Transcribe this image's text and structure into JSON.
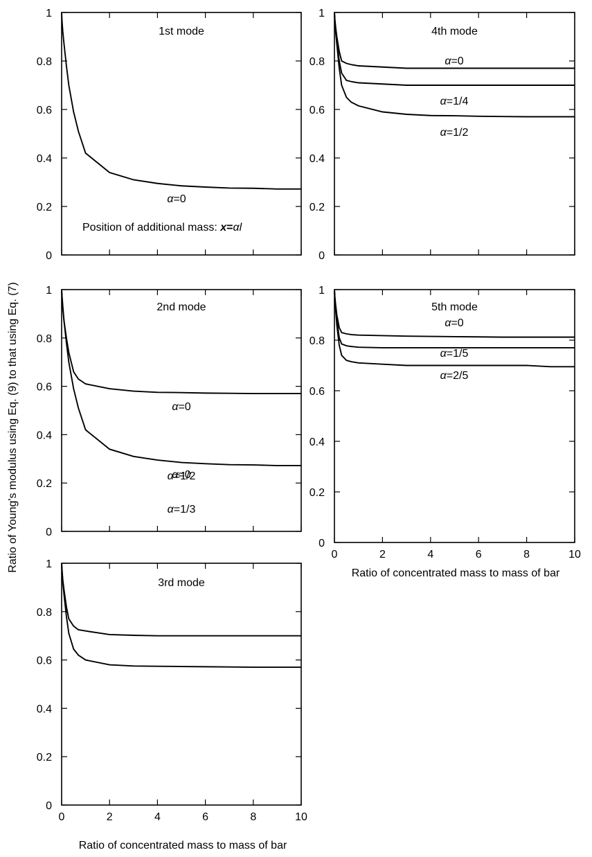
{
  "figure": {
    "ylabel": "Ratio of Young's modulus using Eq. (9) to that using Eq. (7)",
    "xlabel_left": "Ratio of concentrated mass to mass of bar",
    "xlabel_right": "Ratio of concentrated mass to mass of bar",
    "note_parts": {
      "prefix": "Position of additional mass: ",
      "var": "x",
      "eq": "=",
      "alpha": "α",
      "l": "l"
    }
  },
  "chart_data": [
    {
      "type": "line",
      "id": "mode1",
      "title": "1st mode",
      "xlim": [
        0,
        10
      ],
      "ylim": [
        0,
        1
      ],
      "x_ticks": [
        "0",
        "2",
        "4",
        "6",
        "8",
        "10"
      ],
      "y_ticks": [
        "0",
        "0.2",
        "0.4",
        "0.6",
        "0.8",
        "1"
      ],
      "show_x_ticklabels": false,
      "series": [
        {
          "label_parts": {
            "sym": "α",
            "val": "=0"
          },
          "x": [
            0,
            0.02,
            0.05,
            0.1,
            0.2,
            0.3,
            0.5,
            0.7,
            1,
            2,
            3,
            4,
            5,
            6,
            7,
            8,
            9,
            10
          ],
          "y": [
            1.0,
            0.96,
            0.92,
            0.87,
            0.78,
            0.7,
            0.59,
            0.51,
            0.42,
            0.34,
            0.31,
            0.295,
            0.285,
            0.28,
            0.276,
            0.275,
            0.272,
            0.272
          ]
        }
      ]
    },
    {
      "type": "line",
      "id": "mode2",
      "title": "2nd mode",
      "xlim": [
        0,
        10
      ],
      "ylim": [
        0,
        1
      ],
      "x_ticks": [
        "0",
        "2",
        "4",
        "6",
        "8",
        "10"
      ],
      "y_ticks": [
        "0",
        "0.2",
        "0.4",
        "0.6",
        "0.8",
        "1"
      ],
      "show_x_ticklabels": false,
      "series": [
        {
          "label_parts": {
            "sym": "α",
            "val": "=0"
          },
          "x": [
            0,
            0.02,
            0.05,
            0.1,
            0.2,
            0.3,
            0.5,
            0.7,
            1,
            2,
            3,
            4,
            5,
            6,
            7,
            8,
            9,
            10
          ],
          "y": [
            1.0,
            0.97,
            0.93,
            0.87,
            0.8,
            0.74,
            0.66,
            0.63,
            0.61,
            0.59,
            0.58,
            0.575,
            0.574,
            0.572,
            0.571,
            0.57,
            0.57,
            0.57
          ]
        },
        {
          "label_parts": {
            "sym": "α",
            "val": "=1/2"
          },
          "x": [
            0,
            0.02,
            0.05,
            0.1,
            0.2,
            0.3,
            0.5,
            0.7,
            1,
            2,
            3,
            4,
            5,
            6,
            7,
            8,
            9,
            10
          ],
          "y": [
            1.0,
            0.96,
            0.92,
            0.87,
            0.78,
            0.7,
            0.59,
            0.51,
            0.42,
            0.34,
            0.31,
            0.295,
            0.285,
            0.28,
            0.276,
            0.275,
            0.272,
            0.272
          ]
        }
      ]
    },
    {
      "type": "line",
      "id": "mode3",
      "title": "3rd mode",
      "xlim": [
        0,
        10
      ],
      "ylim": [
        0,
        1
      ],
      "x_ticks": [
        "0",
        "2",
        "4",
        "6",
        "8",
        "10"
      ],
      "y_ticks": [
        "0",
        "0.2",
        "0.4",
        "0.6",
        "0.8",
        "1"
      ],
      "show_x_ticklabels": true,
      "series": [
        {
          "label_parts": {
            "sym": "α",
            "val": "=0"
          },
          "x": [
            0,
            0.02,
            0.05,
            0.1,
            0.2,
            0.3,
            0.5,
            0.7,
            1,
            2,
            3,
            4,
            5,
            6,
            7,
            8,
            9,
            10
          ],
          "y": [
            1.0,
            0.97,
            0.93,
            0.89,
            0.82,
            0.77,
            0.74,
            0.725,
            0.72,
            0.705,
            0.702,
            0.7,
            0.7,
            0.7,
            0.7,
            0.7,
            0.7,
            0.7
          ]
        },
        {
          "label_parts": {
            "sym": "α",
            "val": "=1/3"
          },
          "x": [
            0,
            0.02,
            0.05,
            0.1,
            0.2,
            0.3,
            0.5,
            0.7,
            1,
            2,
            3,
            4,
            5,
            6,
            7,
            8,
            9,
            10
          ],
          "y": [
            1.0,
            0.96,
            0.92,
            0.87,
            0.78,
            0.71,
            0.645,
            0.62,
            0.6,
            0.58,
            0.575,
            0.574,
            0.573,
            0.572,
            0.571,
            0.57,
            0.57,
            0.57
          ]
        }
      ]
    },
    {
      "type": "line",
      "id": "mode4",
      "title": "4th mode",
      "xlim": [
        0,
        10
      ],
      "ylim": [
        0,
        1
      ],
      "x_ticks": [
        "0",
        "2",
        "4",
        "6",
        "8",
        "10"
      ],
      "y_ticks": [
        "0",
        "0.2",
        "0.4",
        "0.6",
        "0.8",
        "1"
      ],
      "show_x_ticklabels": false,
      "series": [
        {
          "label_parts": {
            "sym": "α",
            "val": "=0"
          },
          "x": [
            0,
            0.02,
            0.05,
            0.1,
            0.2,
            0.3,
            0.5,
            0.7,
            1,
            2,
            3,
            4,
            5,
            6,
            7,
            8,
            9,
            10
          ],
          "y": [
            1.0,
            0.97,
            0.94,
            0.9,
            0.84,
            0.8,
            0.79,
            0.785,
            0.78,
            0.775,
            0.77,
            0.77,
            0.77,
            0.77,
            0.77,
            0.77,
            0.77,
            0.77
          ]
        },
        {
          "label_parts": {
            "sym": "α",
            "val": "=1/4"
          },
          "x": [
            0,
            0.02,
            0.05,
            0.1,
            0.2,
            0.3,
            0.5,
            0.7,
            1,
            2,
            3,
            4,
            5,
            6,
            7,
            8,
            9,
            10
          ],
          "y": [
            1.0,
            0.96,
            0.93,
            0.88,
            0.8,
            0.75,
            0.72,
            0.715,
            0.71,
            0.705,
            0.7,
            0.7,
            0.7,
            0.7,
            0.7,
            0.7,
            0.7,
            0.7
          ]
        },
        {
          "label_parts": {
            "sym": "α",
            "val": "=1/2"
          },
          "x": [
            0,
            0.02,
            0.05,
            0.1,
            0.2,
            0.3,
            0.5,
            0.7,
            1,
            2,
            3,
            4,
            5,
            6,
            7,
            8,
            9,
            10
          ],
          "y": [
            1.0,
            0.96,
            0.92,
            0.87,
            0.77,
            0.7,
            0.65,
            0.63,
            0.615,
            0.59,
            0.58,
            0.575,
            0.574,
            0.572,
            0.571,
            0.57,
            0.57,
            0.57
          ]
        }
      ]
    },
    {
      "type": "line",
      "id": "mode5",
      "title": "5th mode",
      "xlim": [
        0,
        10
      ],
      "ylim": [
        0,
        1
      ],
      "x_ticks": [
        "0",
        "2",
        "4",
        "6",
        "8",
        "10"
      ],
      "y_ticks": [
        "0",
        "0.2",
        "0.4",
        "0.6",
        "0.8",
        "1"
      ],
      "show_x_ticklabels": true,
      "series": [
        {
          "label_parts": {
            "sym": "α",
            "val": "=0"
          },
          "x": [
            0,
            0.02,
            0.05,
            0.1,
            0.2,
            0.3,
            0.5,
            0.7,
            1,
            2,
            3,
            4,
            5,
            6,
            7,
            8,
            9,
            10
          ],
          "y": [
            1.0,
            0.97,
            0.94,
            0.9,
            0.85,
            0.83,
            0.825,
            0.822,
            0.82,
            0.818,
            0.816,
            0.815,
            0.814,
            0.813,
            0.812,
            0.812,
            0.812,
            0.812
          ]
        },
        {
          "label_parts": {
            "sym": "α",
            "val": "=1/5"
          },
          "x": [
            0,
            0.02,
            0.05,
            0.1,
            0.2,
            0.3,
            0.5,
            0.7,
            1,
            2,
            3,
            4,
            5,
            6,
            7,
            8,
            9,
            10
          ],
          "y": [
            1.0,
            0.96,
            0.93,
            0.88,
            0.81,
            0.785,
            0.778,
            0.775,
            0.772,
            0.77,
            0.77,
            0.77,
            0.77,
            0.77,
            0.77,
            0.77,
            0.77,
            0.77
          ]
        },
        {
          "label_parts": {
            "sym": "α",
            "val": "=2/5"
          },
          "x": [
            0,
            0.02,
            0.05,
            0.1,
            0.2,
            0.3,
            0.5,
            0.7,
            1,
            2,
            3,
            4,
            5,
            6,
            7,
            8,
            9,
            10
          ],
          "y": [
            1.0,
            0.96,
            0.92,
            0.86,
            0.78,
            0.74,
            0.72,
            0.715,
            0.71,
            0.705,
            0.7,
            0.7,
            0.7,
            0.7,
            0.7,
            0.7,
            0.695,
            0.695
          ]
        }
      ]
    }
  ]
}
